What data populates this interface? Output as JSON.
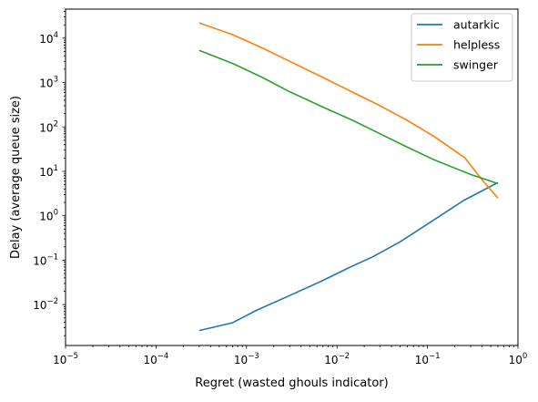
{
  "chart_data": {
    "type": "line",
    "title": "",
    "xlabel": "Regret (wasted ghouls indicator)",
    "ylabel": "Delay (average queue size)",
    "xscale": "log",
    "yscale": "log",
    "xlim": [
      1e-05,
      1
    ],
    "ylim": [
      0.0012,
      45000
    ],
    "grid": false,
    "legend_position": "top-right",
    "x_ticks": [
      {
        "value": 1e-05,
        "base": "10",
        "exp": "−5"
      },
      {
        "value": 0.0001,
        "base": "10",
        "exp": "−4"
      },
      {
        "value": 0.001,
        "base": "10",
        "exp": "−3"
      },
      {
        "value": 0.01,
        "base": "10",
        "exp": "−2"
      },
      {
        "value": 0.1,
        "base": "10",
        "exp": "−1"
      },
      {
        "value": 1,
        "base": "10",
        "exp": "0"
      }
    ],
    "y_ticks": [
      {
        "value": 0.01,
        "base": "10",
        "exp": "−2"
      },
      {
        "value": 0.1,
        "base": "10",
        "exp": "−1"
      },
      {
        "value": 1,
        "base": "10",
        "exp": "0"
      },
      {
        "value": 10,
        "base": "10",
        "exp": "1"
      },
      {
        "value": 100,
        "base": "10",
        "exp": "2"
      },
      {
        "value": 1000,
        "base": "10",
        "exp": "3"
      },
      {
        "value": 10000,
        "base": "10",
        "exp": "4"
      }
    ],
    "series": [
      {
        "name": "autarkic",
        "color": "#1f77b4",
        "points": [
          [
            0.0003,
            0.0026
          ],
          [
            0.0007,
            0.0039
          ],
          [
            0.0013,
            0.0075
          ],
          [
            0.003,
            0.016
          ],
          [
            0.007,
            0.035
          ],
          [
            0.013,
            0.065
          ],
          [
            0.025,
            0.12
          ],
          [
            0.05,
            0.26
          ],
          [
            0.1,
            0.65
          ],
          [
            0.25,
            2.2
          ],
          [
            0.6,
            5.6
          ]
        ]
      },
      {
        "name": "helpless",
        "color": "#ff7f0e",
        "points": [
          [
            0.0003,
            22000
          ],
          [
            0.0007,
            12000
          ],
          [
            0.0015,
            6000
          ],
          [
            0.003,
            3000
          ],
          [
            0.007,
            1300
          ],
          [
            0.015,
            600
          ],
          [
            0.03,
            300
          ],
          [
            0.06,
            140
          ],
          [
            0.12,
            60
          ],
          [
            0.26,
            20
          ],
          [
            0.4,
            6.5
          ],
          [
            0.6,
            2.5
          ]
        ]
      },
      {
        "name": "swinger",
        "color": "#2ca02c",
        "points": [
          [
            0.0003,
            5300
          ],
          [
            0.0007,
            2700
          ],
          [
            0.0015,
            1300
          ],
          [
            0.003,
            620
          ],
          [
            0.007,
            280
          ],
          [
            0.015,
            140
          ],
          [
            0.03,
            70
          ],
          [
            0.06,
            35
          ],
          [
            0.12,
            18
          ],
          [
            0.3,
            8.5
          ],
          [
            0.6,
            5.3
          ]
        ]
      }
    ]
  }
}
